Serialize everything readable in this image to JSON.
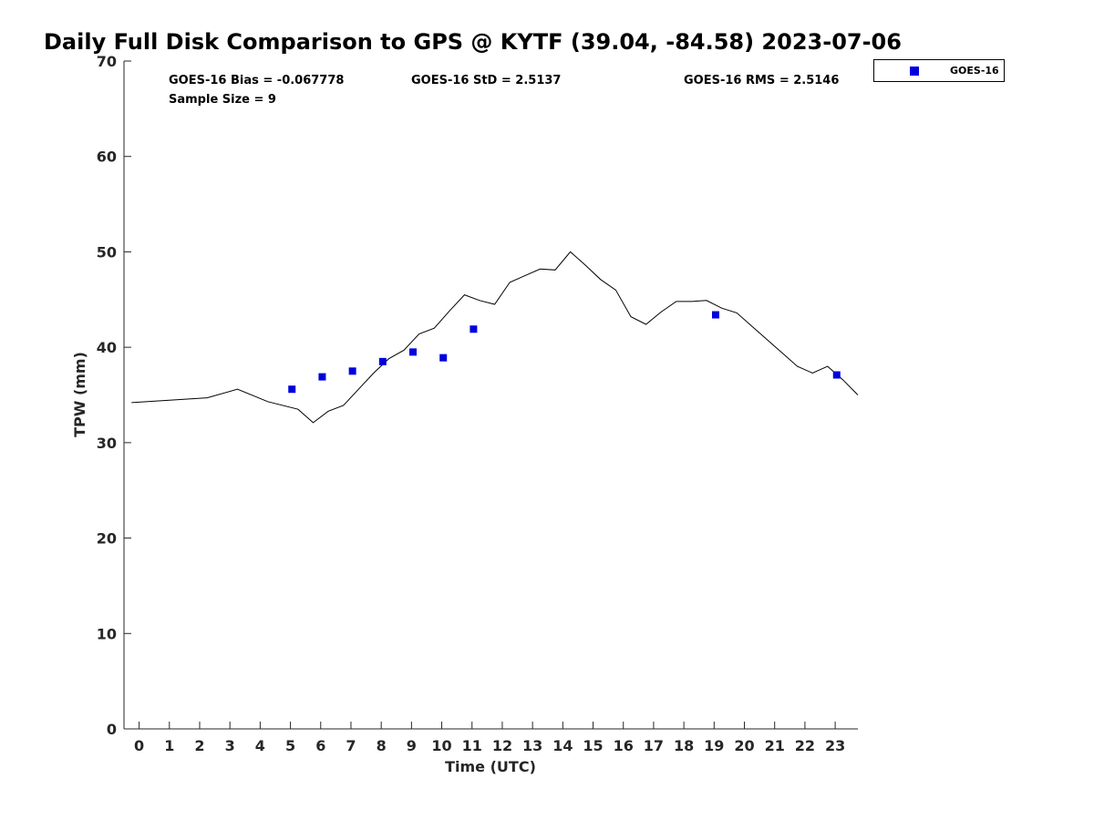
{
  "chart_data": {
    "type": "scatter",
    "title": "Daily Full Disk Comparison to GPS @ KYTF (39.04, -84.58) 2023-07-06",
    "xlabel": "Time (UTC)",
    "ylabel": "TPW (mm)",
    "xlim": [
      -0.5,
      23.75
    ],
    "ylim": [
      0,
      70
    ],
    "x_ticks": [
      0,
      1,
      2,
      3,
      4,
      5,
      6,
      7,
      8,
      9,
      10,
      11,
      12,
      13,
      14,
      15,
      16,
      17,
      18,
      19,
      20,
      21,
      22,
      23
    ],
    "y_ticks": [
      0,
      10,
      20,
      30,
      40,
      50,
      60,
      70
    ],
    "grid": false,
    "legend_position": "outside-top-right",
    "stats": {
      "bias": "GOES-16 Bias = -0.067778",
      "std": "GOES-16 StD = 2.5137",
      "rms": "GOES-16 RMS = 2.5146",
      "sample_size": "Sample Size = 9"
    },
    "series": [
      {
        "type": "line",
        "color": "#000000",
        "points": [
          [
            -0.25,
            34.2
          ],
          [
            2.25,
            34.7
          ],
          [
            3.25,
            35.6
          ],
          [
            4.25,
            34.3
          ],
          [
            5.25,
            33.5
          ],
          [
            5.75,
            32.1
          ],
          [
            6.25,
            33.3
          ],
          [
            6.75,
            33.9
          ],
          [
            7.25,
            35.6
          ],
          [
            7.75,
            37.3
          ],
          [
            8.25,
            38.8
          ],
          [
            8.75,
            39.7
          ],
          [
            9.25,
            41.4
          ],
          [
            9.75,
            42.0
          ],
          [
            10.25,
            43.8
          ],
          [
            10.75,
            45.5
          ],
          [
            11.25,
            44.9
          ],
          [
            11.75,
            44.5
          ],
          [
            12.25,
            46.8
          ],
          [
            12.75,
            47.5
          ],
          [
            13.25,
            48.2
          ],
          [
            13.75,
            48.1
          ],
          [
            14.25,
            50.0
          ],
          [
            14.75,
            48.6
          ],
          [
            15.25,
            47.1
          ],
          [
            15.75,
            46.0
          ],
          [
            16.25,
            43.2
          ],
          [
            16.75,
            42.4
          ],
          [
            17.25,
            43.7
          ],
          [
            17.75,
            44.8
          ],
          [
            18.25,
            44.8
          ],
          [
            18.75,
            44.9
          ],
          [
            19.25,
            44.1
          ],
          [
            19.75,
            43.6
          ],
          [
            20.25,
            42.2
          ],
          [
            20.75,
            40.8
          ],
          [
            21.25,
            39.4
          ],
          [
            21.75,
            38.0
          ],
          [
            22.25,
            37.3
          ],
          [
            22.75,
            38.0
          ],
          [
            23.25,
            36.6
          ],
          [
            23.75,
            35.0
          ]
        ]
      },
      {
        "name": "GOES-16",
        "type": "scatter",
        "color": "#0000dd",
        "marker": "square",
        "points": [
          [
            5.05,
            35.6
          ],
          [
            6.05,
            36.9
          ],
          [
            7.05,
            37.5
          ],
          [
            8.05,
            38.5
          ],
          [
            9.05,
            39.5
          ],
          [
            10.05,
            38.9
          ],
          [
            11.05,
            41.9
          ],
          [
            19.05,
            43.4
          ],
          [
            23.05,
            37.1
          ]
        ]
      }
    ]
  }
}
